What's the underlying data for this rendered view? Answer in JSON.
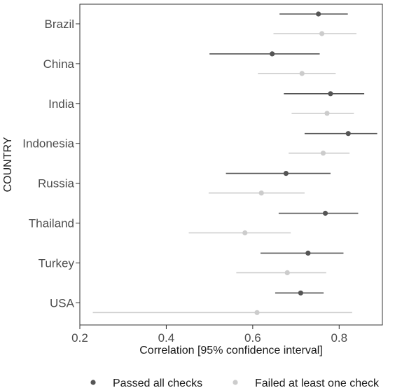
{
  "chart_data": {
    "type": "scatter",
    "subtype": "forest-plot",
    "title": "",
    "xlabel": "Correlation [95% confidence interval]",
    "ylabel": "COUNTRY",
    "xlim": [
      0.2,
      0.9
    ],
    "x_ticks": [
      0.2,
      0.4,
      0.6,
      0.8
    ],
    "x_tick_labels": [
      "0.2",
      "0.4",
      "0.6",
      "0.8"
    ],
    "grid": false,
    "legend_position": "bottom",
    "categories": [
      "Brazil",
      "China",
      "India",
      "Indonesia",
      "Russia",
      "Thailand",
      "Turkey",
      "USA"
    ],
    "series": [
      {
        "name": "Passed all checks",
        "color": "#555555",
        "points": [
          {
            "country": "Brazil",
            "estimate": 0.752,
            "lower": 0.662,
            "upper": 0.82
          },
          {
            "country": "China",
            "estimate": 0.645,
            "lower": 0.5,
            "upper": 0.755
          },
          {
            "country": "India",
            "estimate": 0.78,
            "lower": 0.672,
            "upper": 0.858
          },
          {
            "country": "Indonesia",
            "estimate": 0.821,
            "lower": 0.72,
            "upper": 0.888
          },
          {
            "country": "Russia",
            "estimate": 0.677,
            "lower": 0.538,
            "upper": 0.78
          },
          {
            "country": "Thailand",
            "estimate": 0.768,
            "lower": 0.66,
            "upper": 0.844
          },
          {
            "country": "Turkey",
            "estimate": 0.728,
            "lower": 0.618,
            "upper": 0.81
          },
          {
            "country": "USA",
            "estimate": 0.711,
            "lower": 0.652,
            "upper": 0.764
          }
        ]
      },
      {
        "name": "Failed at least one check",
        "color": "#cccccc",
        "points": [
          {
            "country": "Brazil",
            "estimate": 0.76,
            "lower": 0.648,
            "upper": 0.84
          },
          {
            "country": "China",
            "estimate": 0.714,
            "lower": 0.612,
            "upper": 0.792
          },
          {
            "country": "India",
            "estimate": 0.772,
            "lower": 0.69,
            "upper": 0.834
          },
          {
            "country": "Indonesia",
            "estimate": 0.763,
            "lower": 0.683,
            "upper": 0.824
          },
          {
            "country": "Russia",
            "estimate": 0.62,
            "lower": 0.498,
            "upper": 0.72
          },
          {
            "country": "Thailand",
            "estimate": 0.582,
            "lower": 0.452,
            "upper": 0.688
          },
          {
            "country": "Turkey",
            "estimate": 0.68,
            "lower": 0.562,
            "upper": 0.77
          },
          {
            "country": "USA",
            "estimate": 0.61,
            "lower": 0.23,
            "upper": 0.83
          }
        ]
      }
    ]
  }
}
